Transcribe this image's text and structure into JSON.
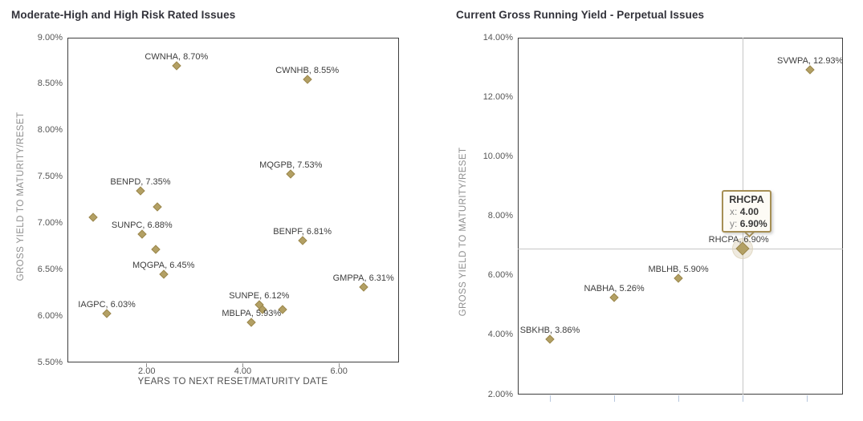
{
  "appearance": {
    "background": "#ffffff",
    "marker_color": "#b3a064",
    "marker_border": "#9c884e",
    "crosshair_color": "#c6c6c6",
    "tooltip_border": "#a68f55",
    "tooltip_background": "#fdfbf5",
    "title_color": "#32323a"
  },
  "chart_data": [
    {
      "type": "scatter",
      "title": "Moderate-High and High Risk Rated Issues",
      "xlabel": "YEARS TO NEXT RESET/MATURITY DATE",
      "ylabel": "GROSS YIELD TO MATURITY/RESET",
      "xlim": [
        0.35,
        7.25
      ],
      "ylim": [
        5.5,
        9.0
      ],
      "grid": false,
      "x_ticks": [
        2,
        4,
        6
      ],
      "x_tick_labels": [
        "2.00",
        "4.00",
        "6.00"
      ],
      "y_ticks": [
        9.0,
        8.5,
        8.0,
        7.5,
        7.0,
        6.5,
        6.0,
        5.5
      ],
      "y_tick_labels": [
        "9.00%",
        "8.50%",
        "8.00%",
        "7.50%",
        "7.00%",
        "6.50%",
        "6.00%",
        "5.50%"
      ],
      "points": [
        {
          "name": "CWNHA",
          "x": 2.62,
          "y": 8.7,
          "label": "CWNHA, 8.70%"
        },
        {
          "name": "CWNHB",
          "x": 5.34,
          "y": 8.55,
          "label": "CWNHB, 8.55%"
        },
        {
          "name": "MQGPB",
          "x": 5.0,
          "y": 7.53,
          "label": "MQGPB, 7.53%"
        },
        {
          "name": "BENPD",
          "x": 1.87,
          "y": 7.35,
          "label": "BENPD, 7.35%"
        },
        {
          "name": "unlabeled-1",
          "x": 2.22,
          "y": 7.18,
          "label": ""
        },
        {
          "name": "unlabeled-2",
          "x": 0.88,
          "y": 7.06,
          "label": ""
        },
        {
          "name": "SUNPC",
          "x": 1.9,
          "y": 6.88,
          "label": "SUNPC, 6.88%"
        },
        {
          "name": "unlabeled-3",
          "x": 2.19,
          "y": 6.72,
          "label": ""
        },
        {
          "name": "MQGPA",
          "x": 2.35,
          "y": 6.45,
          "label": "MQGPA, 6.45%"
        },
        {
          "name": "BENPF",
          "x": 5.24,
          "y": 6.81,
          "label": "BENPF, 6.81%"
        },
        {
          "name": "GMPPA",
          "x": 6.51,
          "y": 6.31,
          "label": "GMPPA, 6.31%"
        },
        {
          "name": "IAGPC",
          "x": 1.17,
          "y": 6.03,
          "label": "IAGPC, 6.03%"
        },
        {
          "name": "SUNPE",
          "x": 4.34,
          "y": 6.12,
          "label": "SUNPE, 6.12%"
        },
        {
          "name": "unlabeled-4",
          "x": 4.41,
          "y": 6.07,
          "label": ""
        },
        {
          "name": "unlabeled-5",
          "x": 4.83,
          "y": 6.07,
          "label": ""
        },
        {
          "name": "MBLPA",
          "x": 4.18,
          "y": 5.93,
          "label": "MBLPA, 5.93%"
        }
      ]
    },
    {
      "type": "scatter",
      "title": "Current Gross Running Yield - Perpetual Issues",
      "xlabel": "",
      "ylabel": "GROSS YIELD TO MATURITY/RESET",
      "xlim": [
        0.5,
        5.56
      ],
      "ylim": [
        2.0,
        14.0
      ],
      "grid": false,
      "x_ticks": [
        1,
        2,
        3,
        4,
        5
      ],
      "x_tick_labels": [
        "",
        "",
        "",
        "",
        ""
      ],
      "y_ticks": [
        14.0,
        12.0,
        10.0,
        8.0,
        6.0,
        4.0,
        2.0
      ],
      "y_tick_labels": [
        "14.00%",
        "12.00%",
        "10.00%",
        "8.00%",
        "6.00%",
        "4.00%",
        "2.00%"
      ],
      "points": [
        {
          "name": "SVWPA",
          "x": 5.05,
          "y": 12.93,
          "label": "SVWPA, 12.93%"
        },
        {
          "name": "RHCPA",
          "x": 4.0,
          "y": 6.9,
          "label": "RHCPA, 6.90%",
          "selected": true,
          "label_dx": -5
        },
        {
          "name": "MBLHB",
          "x": 3.0,
          "y": 5.9,
          "label": "MBLHB, 5.90%"
        },
        {
          "name": "NABHA",
          "x": 2.0,
          "y": 5.26,
          "label": "NABHA, 5.26%"
        },
        {
          "name": "SBKHB",
          "x": 1.0,
          "y": 3.86,
          "label": "SBKHB, 3.86%"
        }
      ],
      "crosshair": {
        "x": 4.0,
        "y": 6.9
      },
      "tooltip": {
        "title": "RHCPA",
        "x_label": "x:",
        "x_value": "4.00",
        "y_label": "y:",
        "y_value": "6.90%"
      }
    }
  ]
}
